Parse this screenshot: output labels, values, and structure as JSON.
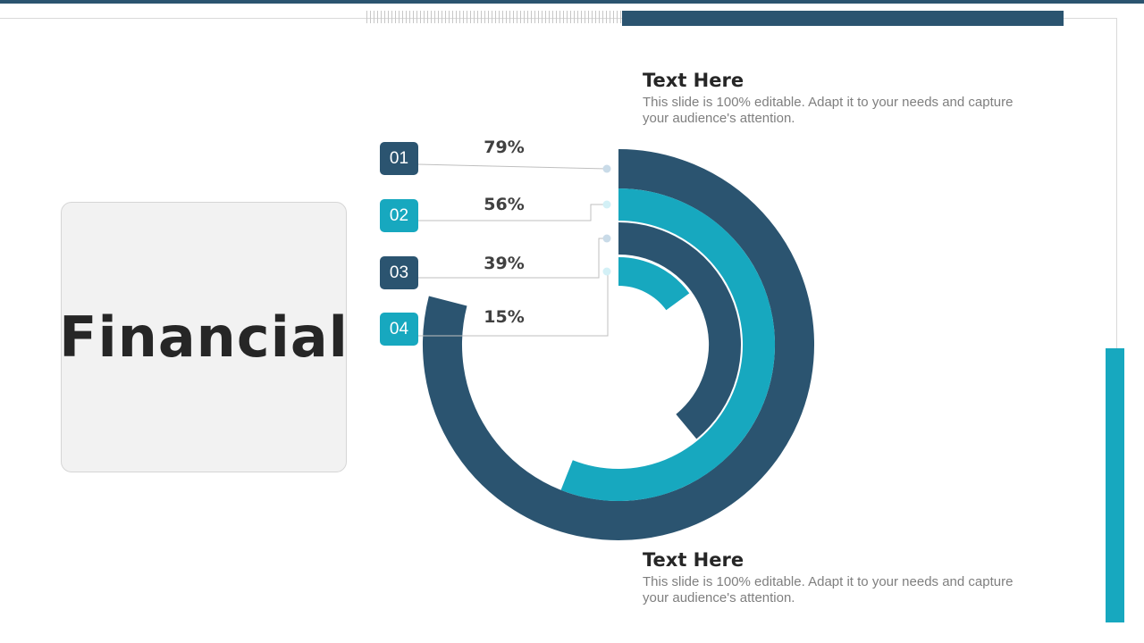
{
  "slide": {
    "title": "Financial"
  },
  "callouts": [
    {
      "heading": "Text Here",
      "body": "This slide is 100% editable. Adapt it to your needs and capture your audience's attention."
    },
    {
      "heading": "Text Here",
      "body": "This slide is 100% editable. Adapt it to your needs and capture your audience's attention."
    }
  ],
  "colors": {
    "navy": "#2b5470",
    "teal": "#17a8bf",
    "connector": "#bfbfbf",
    "dot_navy": "#c9dbe8",
    "dot_teal": "#d3f0f6"
  },
  "chart_data": {
    "type": "radial-bar",
    "categories": [
      "01",
      "02",
      "03",
      "04"
    ],
    "values": [
      79,
      56,
      39,
      15
    ],
    "labels": [
      "79%",
      "56%",
      "39%",
      "15%"
    ],
    "unit": "%",
    "max": 100,
    "series_colors": [
      "#2b5470",
      "#17a8bf",
      "#2b5470",
      "#17a8bf"
    ]
  }
}
